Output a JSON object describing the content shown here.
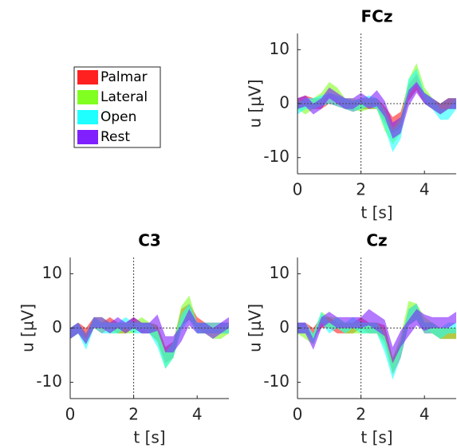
{
  "chart_data": [
    {
      "type": "band",
      "title": "FCz",
      "xlabel": "t [s]",
      "ylabel": "u [μV]",
      "x": [
        0,
        0.25,
        0.5,
        0.75,
        1,
        1.25,
        1.5,
        1.75,
        2,
        2.25,
        2.5,
        2.75,
        3,
        3.25,
        3.5,
        3.75,
        4,
        4.25,
        4.5,
        4.75,
        5
      ],
      "xlim": [
        0,
        5
      ],
      "ylim": [
        -13,
        13
      ],
      "xticks": [
        0,
        2,
        4
      ],
      "yticks": [
        -10,
        0,
        10
      ],
      "vline": 2,
      "hline": 0,
      "series": [
        {
          "name": "Palmar",
          "color": "#ff2020",
          "values": [
            0,
            0.5,
            0,
            0,
            1,
            0.5,
            0,
            -0.5,
            0,
            0,
            0,
            -2,
            -4,
            -3,
            2,
            4,
            1,
            0,
            -1,
            0,
            0
          ],
          "errors": [
            1,
            1,
            1,
            1,
            1,
            1,
            1,
            1,
            1,
            1,
            1,
            1.5,
            1.5,
            1.5,
            1.5,
            1.5,
            1,
            1,
            1,
            1,
            1
          ]
        },
        {
          "name": "Lateral",
          "color": "#80ff20",
          "values": [
            0,
            -1,
            0,
            1,
            3,
            2,
            0,
            0,
            -0.5,
            0,
            0,
            -3,
            -6,
            -4,
            3,
            6,
            2,
            0,
            -1,
            0,
            0
          ],
          "errors": [
            1,
            1,
            1,
            1,
            1,
            1,
            1,
            1,
            1,
            1,
            1,
            2,
            1.5,
            1.5,
            1.5,
            1.5,
            1,
            1,
            1,
            1,
            1
          ]
        },
        {
          "name": "Open",
          "color": "#20ffff",
          "values": [
            -1,
            0,
            0,
            0.5,
            1,
            0.5,
            0,
            -0.5,
            0,
            0.5,
            0,
            -3,
            -7,
            -5,
            3,
            5,
            1,
            0,
            -2,
            -2,
            0
          ],
          "errors": [
            1,
            1,
            1,
            1,
            1,
            1,
            1,
            1,
            1,
            1,
            1,
            1.5,
            2,
            1.5,
            1.5,
            1.5,
            1,
            1,
            1,
            1,
            1
          ]
        },
        {
          "name": "Rest",
          "color": "#8020ff",
          "values": [
            0,
            0.5,
            -1,
            0,
            2,
            1,
            0,
            0,
            1,
            0,
            1,
            -1,
            -5,
            -4,
            1,
            3,
            1,
            0,
            -1,
            0,
            0
          ],
          "errors": [
            1,
            1,
            1,
            1,
            1,
            1,
            1,
            1,
            1,
            1,
            1.5,
            1.5,
            1.5,
            1.5,
            1.5,
            1,
            1,
            1,
            1,
            1,
            1
          ]
        }
      ]
    },
    {
      "type": "band",
      "title": "C3",
      "xlabel": "t [s]",
      "ylabel": "u [μV]",
      "x": [
        0,
        0.25,
        0.5,
        0.75,
        1,
        1.25,
        1.5,
        1.75,
        2,
        2.25,
        2.5,
        2.75,
        3,
        3.25,
        3.5,
        3.75,
        4,
        4.25,
        4.5,
        4.75,
        5
      ],
      "xlim": [
        0,
        5
      ],
      "ylim": [
        -13,
        13
      ],
      "xticks": [
        0,
        2,
        4
      ],
      "yticks": [
        -10,
        0,
        10
      ],
      "vline": 2,
      "hline": 0,
      "series": [
        {
          "color": "#ff2020",
          "values": [
            -1,
            0,
            -1,
            1,
            0,
            1,
            0,
            0,
            1,
            0,
            0,
            -1,
            -5,
            -4,
            2,
            3,
            1,
            0,
            0,
            0,
            0
          ],
          "errors": [
            1,
            1,
            1,
            1,
            1,
            1,
            1,
            1,
            1,
            1,
            1,
            1.5,
            1.5,
            1.5,
            1.5,
            1.5,
            1,
            1,
            1,
            1,
            1
          ]
        },
        {
          "color": "#80ff20",
          "values": [
            -1,
            0,
            -2,
            1,
            1,
            0,
            0,
            0,
            0,
            1,
            0,
            -1,
            -6,
            -4,
            2,
            4,
            0,
            0,
            -1,
            -1,
            0
          ],
          "errors": [
            1,
            1,
            1,
            1,
            1,
            1,
            1,
            1,
            1,
            1,
            1,
            1.5,
            1.5,
            1.5,
            2,
            2,
            1,
            1,
            1,
            1,
            1
          ]
        },
        {
          "color": "#20ffff",
          "values": [
            -1,
            0,
            -3,
            1,
            0,
            0,
            0,
            1,
            0,
            0,
            0,
            -2,
            -6,
            -4,
            1,
            3,
            0,
            0,
            0,
            0,
            0
          ],
          "errors": [
            1,
            1,
            1,
            1,
            1,
            1,
            1,
            1,
            1,
            1,
            1,
            1.5,
            1.5,
            1.5,
            1.5,
            1.5,
            1,
            1,
            1,
            1,
            1
          ]
        },
        {
          "color": "#8020ff",
          "values": [
            -1,
            0,
            -2,
            1,
            1,
            0,
            1,
            0,
            1,
            0,
            0,
            1,
            -3,
            -3,
            -1,
            2,
            0,
            0,
            -1,
            0,
            1
          ],
          "errors": [
            1,
            1,
            1,
            1,
            1,
            1,
            1,
            1,
            1,
            1,
            1,
            1.5,
            1.5,
            1.5,
            1.5,
            1.5,
            1,
            1,
            1,
            1,
            1
          ]
        }
      ]
    },
    {
      "type": "band",
      "title": "Cz",
      "xlabel": "t [s]",
      "ylabel": "u [μV]",
      "x": [
        0,
        0.25,
        0.5,
        0.75,
        1,
        1.25,
        1.5,
        1.75,
        2,
        2.25,
        2.5,
        2.75,
        3,
        3.25,
        3.5,
        3.75,
        4,
        4.25,
        4.5,
        4.75,
        5
      ],
      "xlim": [
        0,
        5
      ],
      "ylim": [
        -13,
        13
      ],
      "xticks": [
        0,
        2,
        4
      ],
      "yticks": [
        -10,
        0,
        10
      ],
      "vline": 2,
      "hline": 0,
      "series": [
        {
          "color": "#ff2020",
          "values": [
            0,
            0,
            -1,
            1,
            1,
            0,
            0,
            0,
            1,
            0,
            0,
            -1,
            -7,
            -4,
            2,
            3,
            0,
            0,
            -1,
            -1,
            -1
          ],
          "errors": [
            1,
            1,
            1,
            1,
            1,
            1,
            1,
            1,
            1,
            1,
            1,
            1.5,
            1.5,
            1.5,
            1.5,
            1.5,
            1,
            1,
            1,
            1,
            1
          ]
        },
        {
          "color": "#80ff20",
          "values": [
            0,
            -1,
            -2,
            2,
            1,
            1,
            0,
            0,
            0,
            0,
            0,
            -2,
            -7,
            -3,
            3,
            3,
            1,
            0,
            -1,
            -1,
            -1
          ],
          "errors": [
            1,
            1,
            1,
            1,
            1,
            1,
            1,
            1,
            1,
            1,
            1,
            1.5,
            1.5,
            1.5,
            2,
            1.5,
            1,
            1,
            1,
            1,
            1
          ]
        },
        {
          "color": "#20ffff",
          "values": [
            0,
            0,
            -2,
            2,
            0,
            1,
            0,
            1,
            0,
            0,
            0,
            -3,
            -8,
            -4,
            2,
            3,
            0,
            0,
            -1,
            0,
            0
          ],
          "errors": [
            1,
            1,
            1,
            1,
            1,
            1,
            1,
            1,
            1,
            1,
            1,
            1.5,
            1.5,
            1.5,
            1.5,
            1.5,
            1,
            1,
            1,
            1,
            1
          ]
        },
        {
          "color": "#8020ff",
          "values": [
            0,
            0,
            -3,
            1,
            2,
            1,
            1,
            1,
            1,
            2,
            1,
            0,
            -5,
            -2,
            0,
            2,
            1,
            1,
            1,
            1,
            2
          ],
          "errors": [
            1,
            1,
            1,
            1,
            1,
            1,
            1,
            1,
            1,
            1.5,
            1.5,
            1.5,
            1.5,
            1.5,
            1.5,
            1.5,
            1.5,
            1,
            1,
            1,
            1
          ]
        }
      ]
    }
  ]
}
